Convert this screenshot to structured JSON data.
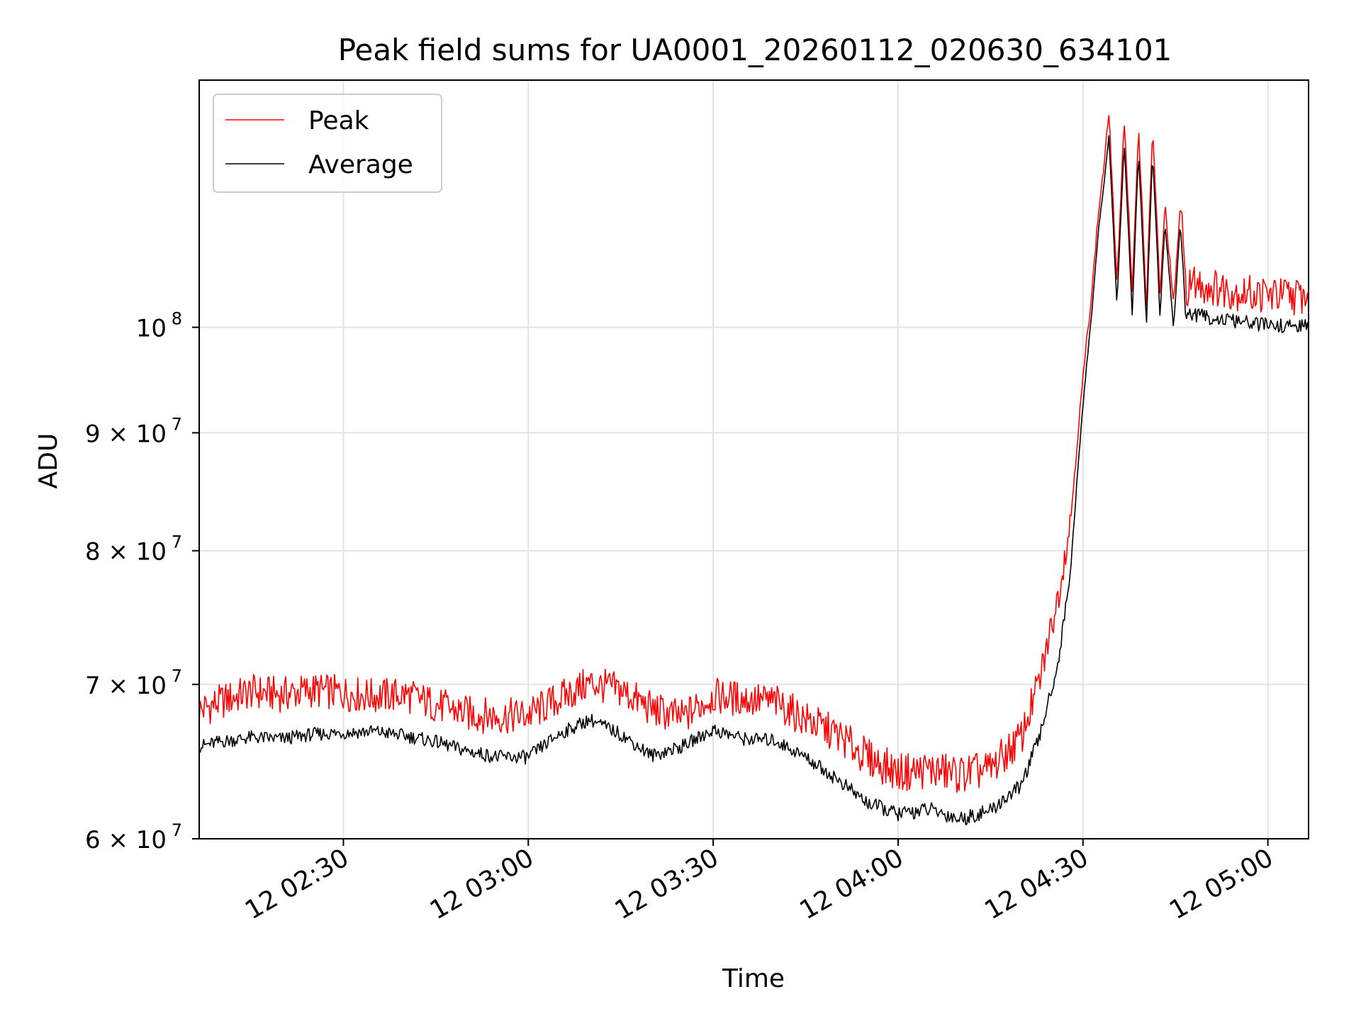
{
  "chart_data": {
    "type": "line",
    "title": "Peak field sums for UA0001_20260112_020630_634101",
    "xlabel": "Time",
    "ylabel": "ADU",
    "yscale": "log",
    "ylim": [
      60000000,
      128000000
    ],
    "xlim_minutes": [
      6.6,
      186.6
    ],
    "grid": true,
    "legend_position": "upper left",
    "x_ticks": [
      {
        "minute": 30,
        "label": "12 02:30"
      },
      {
        "minute": 60,
        "label": "12 03:00"
      },
      {
        "minute": 90,
        "label": "12 03:30"
      },
      {
        "minute": 120,
        "label": "12 04:00"
      },
      {
        "minute": 150,
        "label": "12 04:30"
      },
      {
        "minute": 180,
        "label": "12 05:00"
      }
    ],
    "y_ticks": [
      {
        "value": 60000000,
        "base": "6 × 10",
        "exp": "7"
      },
      {
        "value": 70000000,
        "base": "7 × 10",
        "exp": "7"
      },
      {
        "value": 80000000,
        "base": "8 × 10",
        "exp": "7"
      },
      {
        "value": 90000000,
        "base": "9 × 10",
        "exp": "7"
      },
      {
        "value": 100000000,
        "base": "10",
        "exp": "8"
      }
    ],
    "series": [
      {
        "name": "Peak",
        "color": "#ff0000",
        "points": [
          [
            6.6,
            68.2
          ],
          [
            10,
            68.8
          ],
          [
            15,
            69.5
          ],
          [
            20,
            69.3
          ],
          [
            25,
            69.6
          ],
          [
            30,
            69.4
          ],
          [
            35,
            69.2
          ],
          [
            40,
            69.3
          ],
          [
            45,
            68.6
          ],
          [
            50,
            68.0
          ],
          [
            55,
            67.8
          ],
          [
            60,
            67.9
          ],
          [
            65,
            69.0
          ],
          [
            70,
            70.1
          ],
          [
            75,
            69.6
          ],
          [
            80,
            68.3
          ],
          [
            85,
            67.7
          ],
          [
            90,
            69.2
          ],
          [
            95,
            69.0
          ],
          [
            100,
            68.8
          ],
          [
            105,
            67.6
          ],
          [
            110,
            66.6
          ],
          [
            115,
            65.1
          ],
          [
            120,
            64.1
          ],
          [
            125,
            64.3
          ],
          [
            130,
            64.0
          ],
          [
            135,
            64.3
          ],
          [
            140,
            66.4
          ],
          [
            143,
            70.3
          ],
          [
            146,
            76.5
          ],
          [
            148,
            82.5
          ],
          [
            150,
            95.0
          ],
          [
            151.5,
            104.0
          ],
          [
            152.5,
            112.0
          ],
          [
            153.5,
            118.0
          ],
          [
            154.2,
            124.0
          ],
          [
            155.5,
            104.0
          ],
          [
            156.7,
            123.0
          ],
          [
            158,
            103.0
          ],
          [
            159,
            122.0
          ],
          [
            160.3,
            102.0
          ],
          [
            161.3,
            122.0
          ],
          [
            162.5,
            103.0
          ],
          [
            163.3,
            113.0
          ],
          [
            164.7,
            102.0
          ],
          [
            165.8,
            113.0
          ],
          [
            166.7,
            104.0
          ],
          [
            168,
            104.5
          ],
          [
            172,
            104.0
          ],
          [
            176,
            103.5
          ],
          [
            180,
            103.3
          ],
          [
            184,
            103.2
          ],
          [
            186.6,
            103.2
          ]
        ]
      },
      {
        "name": "Average",
        "color": "#000000",
        "points": [
          [
            6.6,
            65.8
          ],
          [
            10,
            66.1
          ],
          [
            15,
            66.4
          ],
          [
            20,
            66.3
          ],
          [
            25,
            66.6
          ],
          [
            30,
            66.7
          ],
          [
            35,
            66.8
          ],
          [
            40,
            66.5
          ],
          [
            45,
            66.1
          ],
          [
            50,
            65.5
          ],
          [
            55,
            65.1
          ],
          [
            60,
            65.1
          ],
          [
            65,
            66.6
          ],
          [
            70,
            67.6
          ],
          [
            75,
            66.6
          ],
          [
            80,
            65.2
          ],
          [
            85,
            65.8
          ],
          [
            90,
            66.9
          ],
          [
            95,
            66.3
          ],
          [
            100,
            66.2
          ],
          [
            105,
            65.1
          ],
          [
            110,
            63.7
          ],
          [
            115,
            62.2
          ],
          [
            120,
            61.5
          ],
          [
            125,
            61.8
          ],
          [
            130,
            61.2
          ],
          [
            135,
            61.7
          ],
          [
            140,
            63.3
          ],
          [
            143,
            66.5
          ],
          [
            146,
            71.5
          ],
          [
            148,
            78.5
          ],
          [
            150,
            92.5
          ],
          [
            151.5,
            102.0
          ],
          [
            152.5,
            110.0
          ],
          [
            153.5,
            116.0
          ],
          [
            154.2,
            121.0
          ],
          [
            155.5,
            102.0
          ],
          [
            156.7,
            120.0
          ],
          [
            158,
            101.0
          ],
          [
            159,
            119.0
          ],
          [
            160.3,
            100.0
          ],
          [
            161.3,
            119.0
          ],
          [
            162.5,
            101.0
          ],
          [
            163.3,
            111.0
          ],
          [
            164.7,
            99.8
          ],
          [
            165.8,
            111.0
          ],
          [
            166.7,
            101.0
          ],
          [
            168,
            101.3
          ],
          [
            172,
            100.8
          ],
          [
            176,
            100.5
          ],
          [
            180,
            100.2
          ],
          [
            184,
            100.1
          ],
          [
            186.6,
            100.1
          ]
        ]
      }
    ]
  }
}
